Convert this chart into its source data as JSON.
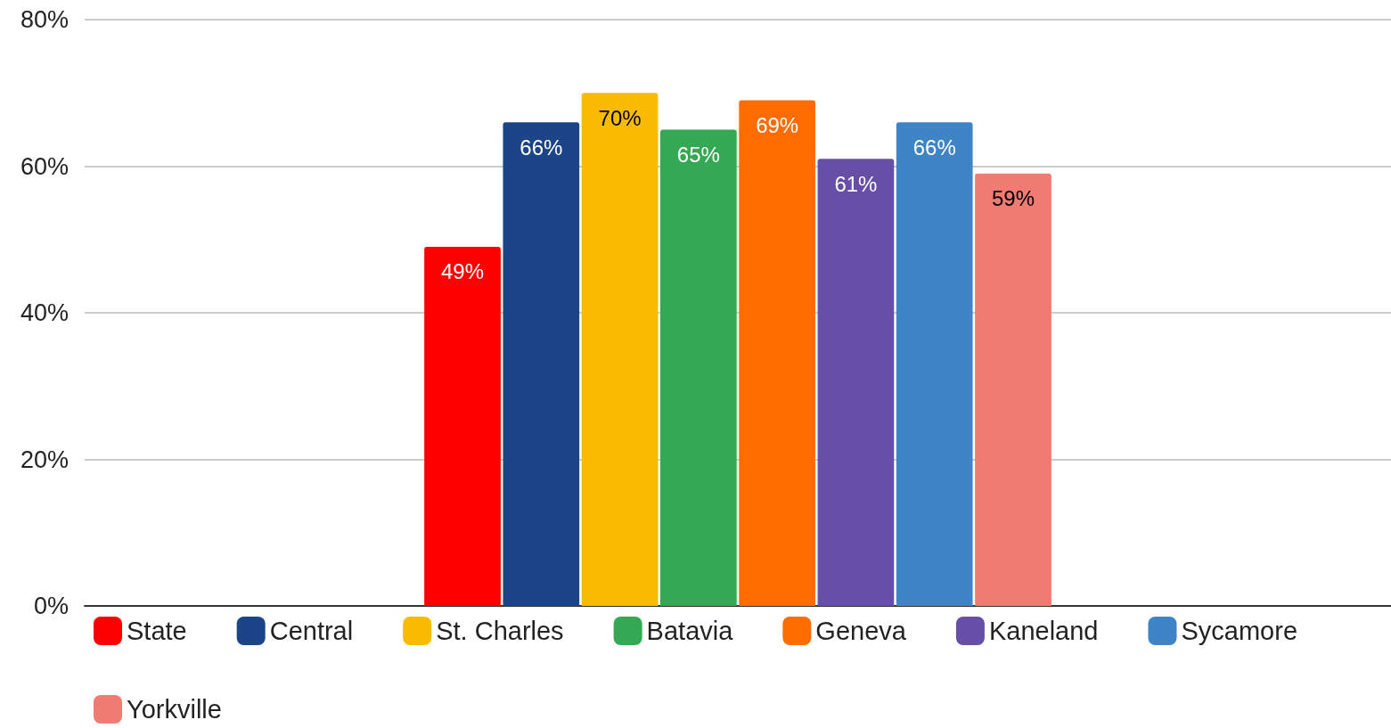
{
  "chart_data": {
    "type": "bar",
    "categories": [
      null
    ],
    "series": [
      {
        "name": "State",
        "color": "#ff0000",
        "values": [
          49
        ],
        "value_labels": [
          "49%"
        ]
      },
      {
        "name": "Central",
        "color": "#1c4587",
        "values": [
          66
        ],
        "value_labels": [
          "66%"
        ]
      },
      {
        "name": "St. Charles",
        "color": "#f9bb00",
        "values": [
          70
        ],
        "value_labels": [
          "70%"
        ]
      },
      {
        "name": "Batavia",
        "color": "#34a853",
        "values": [
          65
        ],
        "value_labels": [
          "65%"
        ]
      },
      {
        "name": "Geneva",
        "color": "#ff6d00",
        "values": [
          69
        ],
        "value_labels": [
          "69%"
        ]
      },
      {
        "name": "Kaneland",
        "color": "#674ea7",
        "values": [
          61
        ],
        "value_labels": [
          "61%"
        ]
      },
      {
        "name": "Sycamore",
        "color": "#3d85c6",
        "values": [
          66
        ],
        "value_labels": [
          "66%"
        ]
      },
      {
        "name": "Yorkville",
        "color": "#f07b72",
        "values": [
          59
        ],
        "value_labels": [
          "59%"
        ]
      }
    ],
    "ylim": [
      0,
      80
    ],
    "yticks": [
      {
        "value": 0,
        "label": "0%"
      },
      {
        "value": 20,
        "label": "20%"
      },
      {
        "value": 40,
        "label": "40%"
      },
      {
        "value": 60,
        "label": "60%"
      },
      {
        "value": 80,
        "label": "80%"
      }
    ],
    "grid": "y",
    "legend": "bottom"
  }
}
